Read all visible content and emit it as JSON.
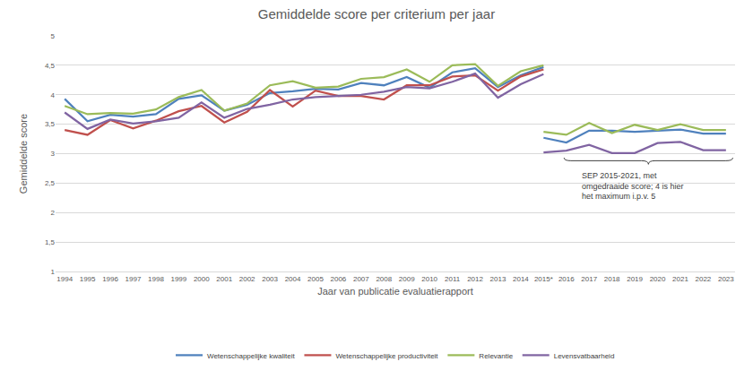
{
  "chart_data": {
    "type": "line",
    "title": "Gemiddelde score per criterium per jaar",
    "x_label": "Jaar van publicatie evaluatierapport",
    "y_label": "Gemiddelde score",
    "xlim": [
      1993.6,
      2023.4
    ],
    "xticks": [
      1994,
      1995,
      1996,
      1997,
      1998,
      1999,
      2000,
      2001,
      2002,
      2003,
      2004,
      2005,
      2006,
      2007,
      2008,
      2009,
      2010,
      2011,
      2012,
      2013,
      2014,
      {
        "value": 2015,
        "label": "2015*"
      },
      2016,
      2017,
      2018,
      2019,
      2020,
      2021,
      2022,
      2023
    ],
    "ylim": [
      1,
      5
    ],
    "yticks": [
      1,
      {
        "value": 1.5,
        "label": "1,5"
      },
      2,
      {
        "value": 2.5,
        "label": "2,5"
      },
      3,
      {
        "value": 3.5,
        "label": "3,5"
      },
      4,
      {
        "value": 4.5,
        "label": "4,5"
      },
      5
    ],
    "grid": true,
    "legend": "bottom",
    "annotations": [
      {
        "text": "SEP 2015-2021, met\nomgedraaide score; 4 is hier\nhet maximum i.p.v. 5"
      }
    ],
    "series": [
      {
        "name": "Wetenschappelijke kwaliteit",
        "color": "#4F81BD",
        "segments": [
          {
            "x": [
              1994,
              1995,
              1996,
              1997,
              1998,
              1999,
              2000,
              2001,
              2002,
              2003,
              2004,
              2005,
              2006,
              2007,
              2008,
              2009,
              2010,
              2011,
              2012,
              2013,
              2014,
              2015
            ],
            "values": [
              3.93,
              3.55,
              3.66,
              3.63,
              3.67,
              3.93,
              3.99,
              3.73,
              3.83,
              4.03,
              4.06,
              4.1,
              4.09,
              4.2,
              4.16,
              4.3,
              4.12,
              4.38,
              4.45,
              4.13,
              4.33,
              4.47
            ]
          },
          {
            "x": [
              2015,
              2016,
              2017,
              2018,
              2019,
              2020,
              2021,
              2022,
              2023
            ],
            "values": [
              3.27,
              3.19,
              3.39,
              3.39,
              3.37,
              3.39,
              3.41,
              3.34,
              3.34
            ]
          }
        ]
      },
      {
        "name": "Wetenschappelijke productiviteit",
        "color": "#C0504D",
        "segments": [
          {
            "x": [
              1994,
              1995,
              1996,
              1997,
              1998,
              1999,
              2000,
              2001,
              2002,
              2003,
              2004,
              2005,
              2006,
              2007,
              2008,
              2009,
              2010,
              2011,
              2012,
              2013,
              2014,
              2015
            ],
            "values": [
              3.4,
              3.32,
              3.57,
              3.43,
              3.56,
              3.72,
              3.81,
              3.53,
              3.71,
              4.08,
              3.8,
              4.07,
              3.98,
              3.98,
              3.92,
              4.16,
              4.16,
              4.31,
              4.33,
              4.07,
              4.31,
              4.43
            ]
          }
        ]
      },
      {
        "name": "Relevantie",
        "color": "#9BBB59",
        "segments": [
          {
            "x": [
              1994,
              1995,
              1996,
              1997,
              1998,
              1999,
              2000,
              2001,
              2002,
              2003,
              2004,
              2005,
              2006,
              2007,
              2008,
              2009,
              2010,
              2011,
              2012,
              2013,
              2014,
              2015
            ],
            "values": [
              3.81,
              3.67,
              3.69,
              3.68,
              3.75,
              3.96,
              4.08,
              3.73,
              3.85,
              4.16,
              4.23,
              4.12,
              4.14,
              4.27,
              4.3,
              4.43,
              4.22,
              4.5,
              4.52,
              4.15,
              4.4,
              4.5
            ]
          },
          {
            "x": [
              2015,
              2016,
              2017,
              2018,
              2019,
              2020,
              2021,
              2022,
              2023
            ],
            "values": [
              3.37,
              3.32,
              3.52,
              3.35,
              3.49,
              3.4,
              3.5,
              3.4,
              3.4
            ]
          }
        ]
      },
      {
        "name": "Levensvatbaarheid",
        "color": "#8064A2",
        "segments": [
          {
            "x": [
              1994,
              1995,
              1996,
              1997,
              1998,
              1999,
              2000,
              2001,
              2002,
              2003,
              2004,
              2005,
              2006,
              2007,
              2008,
              2009,
              2010,
              2011,
              2012,
              2013,
              2014,
              2015
            ],
            "values": [
              3.7,
              3.42,
              3.58,
              3.51,
              3.55,
              3.61,
              3.87,
              3.61,
              3.76,
              3.83,
              3.92,
              3.96,
              3.98,
              4.0,
              4.05,
              4.13,
              4.11,
              4.22,
              4.36,
              3.95,
              4.18,
              4.35
            ]
          },
          {
            "x": [
              2015,
              2016,
              2017,
              2018,
              2019,
              2020,
              2021,
              2022,
              2023
            ],
            "values": [
              3.02,
              3.05,
              3.15,
              3.01,
              3.01,
              3.18,
              3.2,
              3.06,
              3.06
            ]
          }
        ]
      }
    ]
  }
}
